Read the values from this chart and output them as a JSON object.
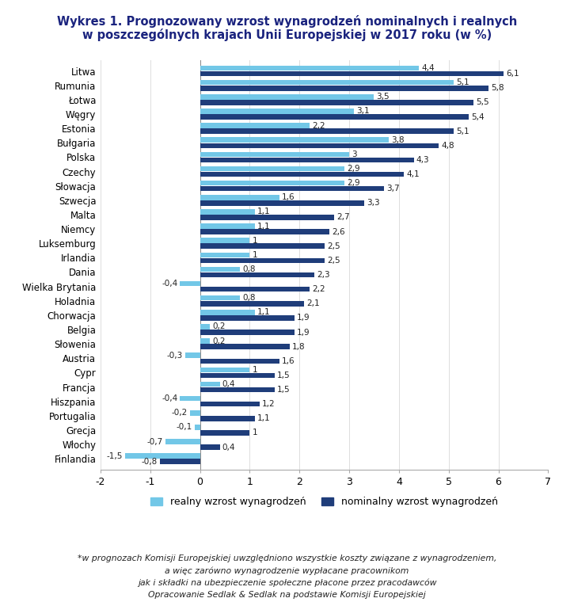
{
  "title_line1": "Wykres 1. Prognozowany wzrost wynagrodzeń nominalnych i realnych",
  "title_line2": "w poszczególnych krajach Unii Europejskiej w 2017 roku (w %)",
  "countries": [
    "Litwa",
    "Rumunia",
    "Łotwa",
    "Węgry",
    "Estonia",
    "Bułgaria",
    "Polska",
    "Czechy",
    "Słowacja",
    "Szwecja",
    "Malta",
    "Niemcy",
    "Luksemburg",
    "Irlandia",
    "Dania",
    "Wielka Brytania",
    "Holadnia",
    "Chorwacja",
    "Belgia",
    "Słowenia",
    "Austria",
    "Cypr",
    "Francja",
    "Hiszpania",
    "Portugalia",
    "Grecja",
    "Włochy",
    "Finlandia"
  ],
  "real": [
    4.4,
    5.1,
    3.5,
    3.1,
    2.2,
    3.8,
    3.0,
    2.9,
    2.9,
    1.6,
    1.1,
    1.1,
    1.0,
    1.0,
    0.8,
    -0.4,
    0.8,
    1.1,
    0.2,
    0.2,
    -0.3,
    1.0,
    0.4,
    -0.4,
    -0.2,
    -0.1,
    -0.7,
    -1.5
  ],
  "real_labels": [
    "4,4",
    "5,1",
    "3,5",
    "3,1",
    "2,2",
    "3,8",
    "3",
    "2,9",
    "2,9",
    "1,6",
    "1,1",
    "1,1",
    "1",
    "1",
    "0,8",
    "-0,4",
    "0,8",
    "1,1",
    "0,2",
    "0,2",
    "-0,3",
    "1",
    "0,4",
    "-0,4",
    "-0,2",
    "-0,1",
    "-0,7",
    "-1,5"
  ],
  "nominal": [
    6.1,
    5.8,
    5.5,
    5.4,
    5.1,
    4.8,
    4.3,
    4.1,
    3.7,
    3.3,
    2.7,
    2.6,
    2.5,
    2.5,
    2.3,
    2.2,
    2.1,
    1.9,
    1.9,
    1.8,
    1.6,
    1.5,
    1.5,
    1.2,
    1.1,
    1.0,
    0.4,
    -0.8
  ],
  "nominal_labels": [
    "6,1",
    "5,8",
    "5,5",
    "5,4",
    "5,1",
    "4,8",
    "4,3",
    "4,1",
    "3,7",
    "3,3",
    "2,7",
    "2,6",
    "2,5",
    "2,5",
    "2,3",
    "2,2",
    "2,1",
    "1,9",
    "1,9",
    "1,8",
    "1,6",
    "1,5",
    "1,5",
    "1,2",
    "1,1",
    "1",
    "0,4",
    "-0,8"
  ],
  "color_real": "#72c7e7",
  "color_nominal": "#1f3d7a",
  "title_color": "#1a237e",
  "xlim": [
    -2,
    7
  ],
  "xticks": [
    -2,
    -1,
    0,
    1,
    2,
    3,
    4,
    5,
    6,
    7
  ],
  "legend_real": "realny wzrost wynagrodzeń",
  "legend_nominal": "nominalny wzrost wynagrodzeń",
  "footnote_line1": "*w prognozach Komisji Europejskiej uwzględniono wszystkie koszty związane z wynagrodzeniem,",
  "footnote_line2": "a więc zarówno wynagrodzenie wypłacane pracownikom",
  "footnote_line3": "jak i składki na ubezpieczenie społeczne płacone przez pracodawców",
  "footnote_line4": "Opracowanie Sedlak & Sedlak na podstawie Komisji Europejskiej"
}
